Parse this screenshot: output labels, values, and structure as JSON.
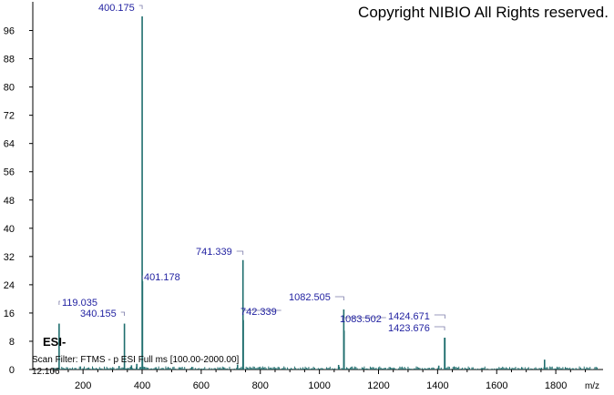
{
  "copyright": "Copyright NIBIO All Rights reserved.",
  "ion_mode": "ESI-",
  "scan_filter": "Scan Filter: FTMS - p ESI Full ms [100.00-2000.00]",
  "retention_time": "12.106",
  "colors": {
    "peak": "#1f6e6e",
    "label": "#1f1fa0",
    "bracket": "#7a7aa8",
    "axis": "#000000"
  },
  "chart_data": {
    "type": "bar",
    "xlabel": "m/z",
    "ylabel": "",
    "xlim": [
      30,
      1960
    ],
    "ylim": [
      0,
      100
    ],
    "xticks": [
      200,
      400,
      600,
      800,
      1000,
      1200,
      1400,
      1600,
      1800
    ],
    "yticks": [
      0,
      8,
      16,
      24,
      32,
      40,
      48,
      56,
      64,
      72,
      80,
      88,
      96
    ],
    "peaks": [
      {
        "mz": 119.035,
        "intensity": 13
      },
      {
        "mz": 340.155,
        "intensity": 13
      },
      {
        "mz": 400.175,
        "intensity": 100
      },
      {
        "mz": 401.178,
        "intensity": 25
      },
      {
        "mz": 741.339,
        "intensity": 31
      },
      {
        "mz": 742.339,
        "intensity": 14
      },
      {
        "mz": 1082.505,
        "intensity": 17
      },
      {
        "mz": 1083.502,
        "intensity": 11
      },
      {
        "mz": 1423.676,
        "intensity": 9
      },
      {
        "mz": 1424.671,
        "intensity": 9
      },
      {
        "mz": 1762,
        "intensity": 2.8
      },
      {
        "mz": 1065,
        "intensity": 1.3
      },
      {
        "mz": 1404,
        "intensity": 1.1
      },
      {
        "mz": 723,
        "intensity": 1.4
      },
      {
        "mz": 382,
        "intensity": 1.6
      },
      {
        "mz": 364,
        "intensity": 1.2
      },
      {
        "mz": 322,
        "intensity": 1.0
      }
    ],
    "labels": [
      {
        "text": "400.175",
        "mz": 400.175
      },
      {
        "text": "401.178",
        "mz": 401.178
      },
      {
        "text": "119.035",
        "mz": 119.035
      },
      {
        "text": "340.155",
        "mz": 340.155
      },
      {
        "text": "741.339",
        "mz": 741.339
      },
      {
        "text": "742.339",
        "mz": 742.339
      },
      {
        "text": "1082.505",
        "mz": 1082.505
      },
      {
        "text": "1083.502",
        "mz": 1083.502
      },
      {
        "text": "1424.671",
        "mz": 1424.671
      },
      {
        "text": "1423.676",
        "mz": 1423.676
      }
    ]
  }
}
